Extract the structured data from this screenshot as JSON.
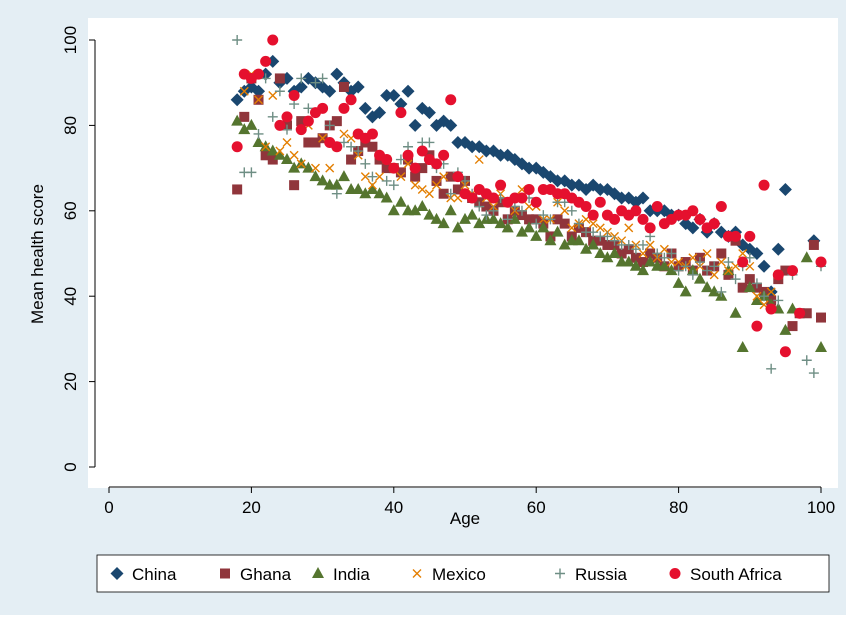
{
  "chart_data": {
    "type": "scatter",
    "xlabel": "Age",
    "ylabel": "Mean health score",
    "xlim": [
      0,
      100
    ],
    "ylim": [
      0,
      100
    ],
    "xticks": [
      0,
      20,
      40,
      60,
      80,
      100
    ],
    "yticks": [
      0,
      20,
      40,
      60,
      80,
      100
    ],
    "legend": "bottom",
    "x": [
      18,
      19,
      20,
      21,
      22,
      23,
      24,
      25,
      26,
      27,
      28,
      29,
      30,
      31,
      32,
      33,
      34,
      35,
      36,
      37,
      38,
      39,
      40,
      41,
      42,
      43,
      44,
      45,
      46,
      47,
      48,
      49,
      50,
      51,
      52,
      53,
      54,
      55,
      56,
      57,
      58,
      59,
      60,
      61,
      62,
      63,
      64,
      65,
      66,
      67,
      68,
      69,
      70,
      71,
      72,
      73,
      74,
      75,
      76,
      77,
      78,
      79,
      80,
      81,
      82,
      83,
      84,
      85,
      86,
      87,
      88,
      89,
      90,
      91,
      92,
      93,
      94,
      95,
      96,
      97,
      98,
      99,
      100
    ],
    "series": [
      {
        "name": "China",
        "color": "#1a476f",
        "marker": "diamond",
        "values": [
          86,
          88,
          89,
          88,
          92,
          95,
          90,
          91,
          88,
          89,
          91,
          90,
          89,
          88,
          92,
          90,
          88,
          89,
          84,
          82,
          83,
          87,
          87,
          85,
          88,
          80,
          84,
          83,
          80,
          81,
          80,
          76,
          76,
          75,
          75,
          74,
          74,
          73,
          73,
          72,
          71,
          70,
          70,
          69,
          68,
          67,
          67,
          66,
          66,
          65,
          66,
          65,
          65,
          64,
          63,
          63,
          62,
          63,
          60,
          60,
          60,
          59,
          59,
          57,
          56,
          58,
          55,
          57,
          55,
          54,
          55,
          52,
          51,
          50,
          47,
          41,
          51,
          65,
          null,
          null,
          null,
          53,
          null
        ]
      },
      {
        "name": "Ghana",
        "color": "#90353b",
        "marker": "square",
        "values": [
          65,
          82,
          91,
          86,
          73,
          72,
          91,
          80,
          66,
          81,
          76,
          76,
          77,
          80,
          81,
          89,
          72,
          74,
          76,
          75,
          72,
          70,
          70,
          69,
          72,
          68,
          70,
          73,
          67,
          64,
          68,
          65,
          67,
          63,
          62,
          61,
          60,
          62,
          58,
          60,
          59,
          58,
          58,
          57,
          54,
          58,
          57,
          54,
          56,
          55,
          53,
          53,
          52,
          52,
          50,
          51,
          49,
          48,
          50,
          49,
          47,
          50,
          47,
          48,
          46,
          49,
          46,
          47,
          50,
          45,
          53,
          42,
          44,
          42,
          41,
          39,
          44,
          46,
          33,
          36,
          36,
          52,
          35
        ]
      },
      {
        "name": "India",
        "color": "#55752f",
        "marker": "triangle",
        "values": [
          81,
          79,
          80,
          76,
          75,
          74,
          73,
          72,
          70,
          71,
          70,
          68,
          67,
          66,
          66,
          68,
          65,
          65,
          64,
          65,
          64,
          63,
          60,
          62,
          60,
          60,
          61,
          59,
          58,
          57,
          60,
          56,
          58,
          59,
          57,
          58,
          58,
          57,
          56,
          58,
          55,
          56,
          54,
          56,
          53,
          55,
          52,
          53,
          53,
          51,
          52,
          50,
          49,
          50,
          48,
          48,
          47,
          46,
          48,
          47,
          47,
          46,
          43,
          41,
          46,
          44,
          42,
          41,
          40,
          46,
          36,
          28,
          42,
          39,
          40,
          38,
          37,
          32,
          37,
          null,
          49,
          null,
          28
        ]
      },
      {
        "name": "Mexico",
        "color": "#e37e00",
        "marker": "cross",
        "values": [
          null,
          88,
          92,
          86,
          75,
          87,
          74,
          76,
          73,
          71,
          80,
          70,
          77,
          70,
          75,
          78,
          77,
          73,
          68,
          66,
          68,
          72,
          70,
          68,
          71,
          66,
          65,
          64,
          66,
          68,
          63,
          63,
          66,
          64,
          72,
          63,
          61,
          64,
          62,
          60,
          65,
          61,
          61,
          58,
          58,
          62,
          60,
          56,
          57,
          58,
          57,
          56,
          55,
          54,
          53,
          56,
          52,
          50,
          52,
          49,
          51,
          48,
          48,
          47,
          49,
          47,
          50,
          45,
          48,
          46,
          47,
          50,
          47,
          40,
          38,
          41,
          45,
          null,
          null,
          null,
          null,
          null,
          null
        ]
      },
      {
        "name": "Russia",
        "color": "#6e8e84",
        "marker": "plus",
        "values": [
          100,
          69,
          69,
          78,
          91,
          82,
          88,
          79,
          85,
          91,
          84,
          90,
          91,
          80,
          64,
          76,
          75,
          74,
          71,
          68,
          73,
          67,
          66,
          72,
          75,
          70,
          76,
          76,
          70,
          71,
          64,
          69,
          67,
          64,
          61,
          59,
          60,
          63,
          58,
          61,
          60,
          63,
          57,
          59,
          58,
          62,
          62,
          60,
          57,
          55,
          55,
          54,
          54,
          53,
          52,
          52,
          51,
          52,
          54,
          50,
          49,
          50,
          46,
          47,
          45,
          48,
          46,
          47,
          41,
          48,
          44,
          47,
          49,
          43,
          40,
          23,
          39,
          null,
          45,
          null,
          25,
          22,
          47
        ]
      },
      {
        "name": "South Africa",
        "color": "#e5102e",
        "marker": "circle",
        "values": [
          75,
          92,
          91,
          92,
          95,
          100,
          80,
          82,
          87,
          79,
          81,
          83,
          84,
          76,
          75,
          84,
          86,
          78,
          77,
          78,
          73,
          72,
          70,
          83,
          73,
          70,
          74,
          72,
          71,
          73,
          86,
          68,
          64,
          63,
          65,
          64,
          63,
          66,
          62,
          63,
          63,
          65,
          62,
          65,
          65,
          64,
          64,
          63,
          62,
          61,
          59,
          62,
          59,
          58,
          60,
          59,
          60,
          58,
          56,
          61,
          57,
          58,
          59,
          59,
          60,
          58,
          56,
          57,
          61,
          54,
          54,
          48,
          54,
          33,
          66,
          37,
          45,
          27,
          46,
          36,
          null,
          null,
          48
        ]
      }
    ]
  }
}
